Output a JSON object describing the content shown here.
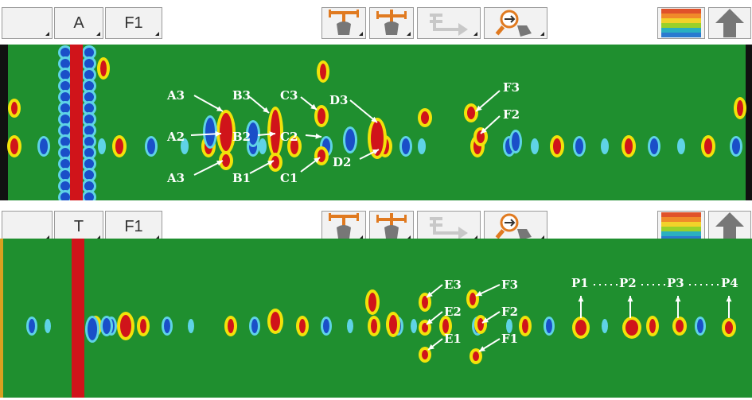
{
  "panel_top": {
    "toolbar": {
      "blank_label": "",
      "channel_label": "A",
      "filter_label": "F1"
    },
    "labels": [
      "A3",
      "A2",
      "A3",
      "B3",
      "B2",
      "B1",
      "C3",
      "C2",
      "C1",
      "D3",
      "D2",
      "F3",
      "F2"
    ]
  },
  "panel_bottom": {
    "toolbar": {
      "blank_label": "",
      "channel_label": "T",
      "filter_label": "F1"
    },
    "labels": [
      "E3",
      "E2",
      "E1",
      "F3",
      "F2",
      "F1",
      "P1",
      "P2",
      "P3",
      "P4"
    ]
  },
  "icons": [
    "depth-gauge-icon",
    "depth-gauge-alt-icon",
    "export-arrow-icon",
    "zoom-hand-icon",
    "color-palette-icon",
    "up-arrow-icon"
  ],
  "colors": {
    "background_green": "#1f8f2f",
    "defect_red": "#d0141a",
    "defect_yellow": "#f2e20a",
    "defect_blue": "#1a4fc8",
    "defect_cyan": "#5fd3e6",
    "label_white": "#ffffff"
  }
}
